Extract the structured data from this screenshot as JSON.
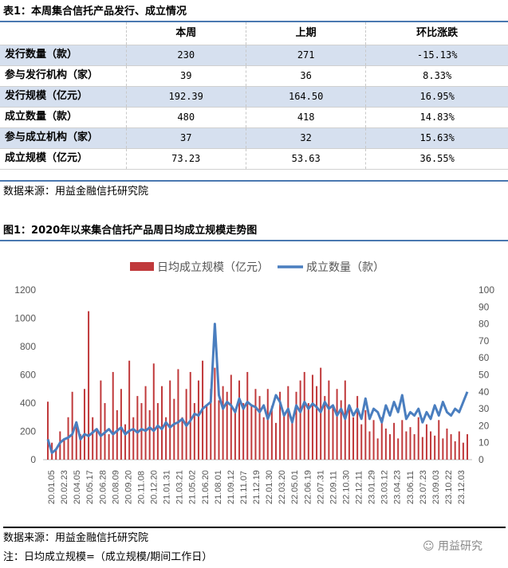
{
  "table": {
    "title": "表1：本周集合信托产品发行、成立情况",
    "headers": [
      "",
      "本周",
      "上期",
      "环比涨跌"
    ],
    "rows": [
      {
        "label": "发行数量（款）",
        "cur": "230",
        "prev": "271",
        "chg": "-15.13%"
      },
      {
        "label": "参与发行机构（家）",
        "cur": "39",
        "prev": "36",
        "chg": "8.33%"
      },
      {
        "label": "发行规模（亿元）",
        "cur": "192.39",
        "prev": "164.50",
        "chg": "16.95%"
      },
      {
        "label": "成立数量（款）",
        "cur": "480",
        "prev": "418",
        "chg": "14.83%"
      },
      {
        "label": "参与成立机构（家）",
        "cur": "37",
        "prev": "32",
        "chg": "15.63%"
      },
      {
        "label": "成立规模（亿元）",
        "cur": "73.23",
        "prev": "53.63",
        "chg": "36.55%"
      }
    ],
    "source": "数据来源：用益金融信托研究院"
  },
  "figure": {
    "title": "图1：2020年以来集合信托产品周日均成立规模走势图",
    "source": "数据来源：用益金融信托研究院",
    "note": "注：日均成立规模=（成立规模/期间工作日）",
    "watermark": "用益研究"
  },
  "chart_data": {
    "type": "bar+line",
    "title": "2020年以来集合信托产品周日均成立规模走势图",
    "legend_position": "top",
    "colors": {
      "bar": "#c0393b",
      "line": "#4a7ebf"
    },
    "left_axis": {
      "range": [
        0,
        1200
      ],
      "ticks": [
        "0",
        "200",
        "400",
        "600",
        "800",
        "1000",
        "1200"
      ]
    },
    "right_axis": {
      "range": [
        0,
        100
      ],
      "ticks": [
        "0",
        "10",
        "20",
        "30",
        "40",
        "50",
        "60",
        "70",
        "80",
        "90",
        "100"
      ]
    },
    "x_tick_labels": [
      "20.01.05",
      "20.02.23",
      "20.04.05",
      "20.05.17",
      "20.06.28",
      "20.08.09",
      "20.09.20",
      "20.11.08",
      "20.12.20",
      "21.01.31",
      "21.03.21",
      "21.05.02",
      "21.06.20",
      "21.08.01",
      "21.09.12",
      "21.11.07",
      "21.12.19",
      "22.01.30",
      "22.03.20",
      "22.05.01",
      "22.06.19",
      "22.07.31",
      "22.09.11",
      "22.10.30",
      "22.12.11",
      "23.01.29",
      "23.03.12",
      "23.04.23",
      "23.06.11",
      "23.07.23",
      "23.09.03",
      "23.10.22",
      "23.12.03"
    ],
    "series": [
      {
        "name": "日均成立规模（亿元）",
        "type": "bar",
        "axis": "left",
        "values": [
          410,
          120,
          80,
          200,
          150,
          300,
          480,
          250,
          180,
          500,
          1050,
          300,
          220,
          560,
          400,
          180,
          620,
          350,
          500,
          250,
          700,
          300,
          450,
          400,
          520,
          350,
          680,
          400,
          520,
          300,
          560,
          430,
          640,
          300,
          500,
          620,
          400,
          560,
          700,
          380,
          500,
          650,
          420,
          520,
          480,
          600,
          350,
          560,
          400,
          620,
          380,
          500,
          450,
          300,
          500,
          380,
          260,
          480,
          320,
          520,
          300,
          480,
          560,
          620,
          400,
          600,
          520,
          650,
          450,
          560,
          380,
          500,
          420,
          560,
          380,
          300,
          450,
          250,
          350,
          200,
          280,
          150,
          300,
          220,
          180,
          260,
          150,
          280,
          200,
          230,
          180,
          300,
          160,
          250,
          200,
          170,
          280,
          150,
          220,
          180,
          130,
          200,
          120,
          180
        ]
      },
      {
        "name": "成立数量（款）",
        "type": "line",
        "axis": "right",
        "values": [
          12,
          4,
          6,
          10,
          12,
          13,
          15,
          22,
          12,
          15,
          14,
          16,
          18,
          14,
          16,
          18,
          15,
          17,
          19,
          15,
          17,
          18,
          16,
          18,
          17,
          19,
          17,
          20,
          18,
          22,
          19,
          21,
          22,
          24,
          20,
          23,
          27,
          26,
          30,
          32,
          34,
          80,
          38,
          30,
          34,
          32,
          28,
          36,
          30,
          34,
          32,
          31,
          28,
          32,
          24,
          30,
          38,
          34,
          26,
          30,
          22,
          32,
          28,
          34,
          30,
          33,
          31,
          28,
          34,
          30,
          32,
          26,
          30,
          24,
          32,
          26,
          30,
          24,
          36,
          24,
          30,
          28,
          22,
          32,
          26,
          34,
          28,
          38,
          24,
          28,
          26,
          30,
          22,
          28,
          24,
          32,
          26,
          34,
          28,
          26,
          30,
          28,
          34,
          40
        ]
      }
    ]
  }
}
